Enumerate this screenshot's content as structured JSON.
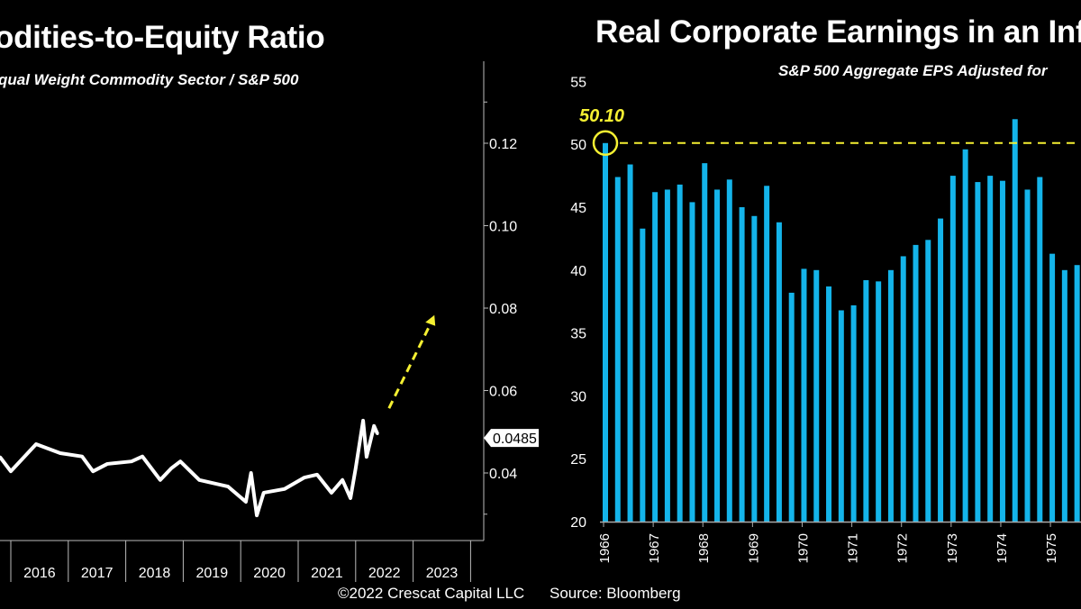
{
  "colors": {
    "background": "#000000",
    "bar": "#14b4ea",
    "line": "#ffffff",
    "highlight": "#f5f032"
  },
  "footer": {
    "copyright": "©2022 Crescat Capital LLC",
    "source": "Source: Bloomberg"
  },
  "chart_data": [
    {
      "type": "line",
      "title": "odities-to-Equity Ratio",
      "subtitle": "qual Weight Commodity Sector / S&P 500",
      "x_tick_labels": [
        "2016",
        "2017",
        "2018",
        "2019",
        "2020",
        "2021",
        "2022",
        "2023"
      ],
      "y_tick_labels": [
        "0.12",
        "0.10",
        "0.08",
        "0.06",
        "0.04"
      ],
      "y_ticks": [
        0.12,
        0.1,
        0.08,
        0.06,
        0.04
      ],
      "xlim": [
        2015.8,
        2024.0
      ],
      "ylim": [
        0.0195,
        0.1365
      ],
      "y_axis_side": "right",
      "grid": false,
      "last_value_label": "0.0485",
      "series": [
        {
          "x": [
            2015.81,
            2016.0,
            2016.44,
            2016.86,
            2017.24,
            2017.43,
            2017.68,
            2018.1,
            2018.29,
            2018.6,
            2018.79,
            2018.95,
            2019.28,
            2019.78,
            2020.09,
            2020.18,
            2020.28,
            2020.4,
            2020.76,
            2021.11,
            2021.33,
            2021.58,
            2021.77,
            2021.91,
            2022.0,
            2022.13,
            2022.19,
            2022.32,
            2022.38
          ],
          "y": [
            0.0439,
            0.0404,
            0.047,
            0.0448,
            0.044,
            0.0404,
            0.0422,
            0.0428,
            0.044,
            0.0383,
            0.0411,
            0.0428,
            0.0383,
            0.0367,
            0.033,
            0.04,
            0.0297,
            0.0352,
            0.0361,
            0.0389,
            0.0396,
            0.0352,
            0.0383,
            0.0339,
            0.0411,
            0.0527,
            0.0439,
            0.0514,
            0.0495
          ]
        }
      ],
      "annotations": [
        {
          "type": "dashed-arrow",
          "color": "#f5f032",
          "from": [
            2022.58,
            0.0557
          ],
          "to": [
            2023.37,
            0.0783
          ]
        }
      ]
    },
    {
      "type": "bar",
      "title": "Real Corporate Earnings in an Inf",
      "subtitle": "S&P 500 Aggregate EPS Adjusted for",
      "ylim": [
        20,
        55
      ],
      "y_tick_labels": [
        "55",
        "50",
        "45",
        "40",
        "35",
        "30",
        "25",
        "20"
      ],
      "y_ticks": [
        55,
        50,
        45,
        40,
        35,
        30,
        25,
        20
      ],
      "x_tick_labels": [
        "1966",
        "1967",
        "1968",
        "1969",
        "1970",
        "1971",
        "1972",
        "1973",
        "1974",
        "1975"
      ],
      "bars_per_tick": 4,
      "grid": false,
      "values": [
        50.1,
        47.4,
        48.4,
        43.3,
        46.2,
        46.4,
        46.8,
        45.4,
        48.5,
        46.4,
        47.2,
        45.0,
        44.3,
        46.7,
        43.8,
        38.2,
        40.1,
        40.0,
        38.7,
        36.8,
        37.2,
        39.2,
        39.1,
        40.0,
        41.1,
        42.0,
        42.4,
        44.1,
        47.5,
        49.6,
        47.0,
        47.5,
        47.1,
        52.0,
        46.4,
        47.4,
        41.3,
        40.0,
        40.4
      ],
      "annotations": [
        {
          "type": "reference-line",
          "value": 50.1,
          "label": "50.10",
          "color": "#f5f032",
          "style": "dashed",
          "marker": "circle on first bar"
        }
      ]
    }
  ]
}
